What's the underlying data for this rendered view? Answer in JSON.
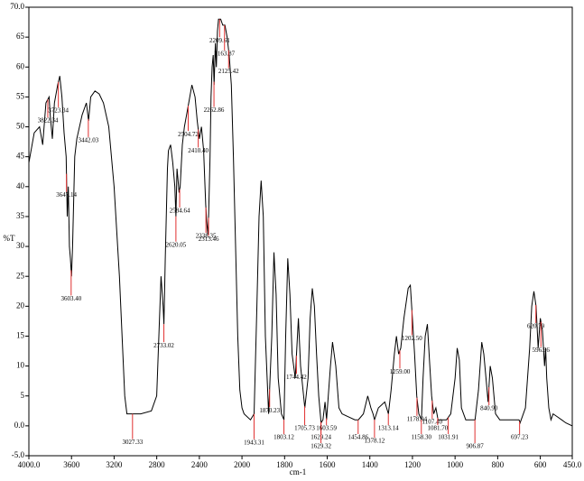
{
  "chart_data": {
    "type": "line",
    "xlabel": "cm-1",
    "ylabel": "%T",
    "xlim": [
      4000,
      450
    ],
    "ylim": [
      -5,
      70
    ],
    "xticks": [
      {
        "value": 4000,
        "label": "4000.0"
      },
      3600,
      3200,
      2800,
      2400,
      2000,
      1800,
      1600,
      1400,
      1200,
      1000,
      800,
      600,
      {
        "value": 450,
        "label": "450.0"
      }
    ],
    "yticks": [
      {
        "value": 70,
        "label": "70.0"
      },
      65,
      60,
      55,
      50,
      45,
      40,
      35,
      30,
      25,
      20,
      15,
      10,
      5,
      {
        "value": 0,
        "label": "0.0"
      },
      {
        "value": -5,
        "label": "-5.0"
      }
    ],
    "color": "#000000",
    "peak_color": "#e03030",
    "x": [
      4000,
      3950,
      3900,
      3870,
      3840,
      3810,
      3800,
      3780,
      3760,
      3730,
      3710,
      3690,
      3670,
      3650,
      3640,
      3630,
      3620,
      3610,
      3600,
      3590,
      3570,
      3550,
      3500,
      3460,
      3440,
      3420,
      3380,
      3340,
      3300,
      3250,
      3200,
      3150,
      3100,
      3080,
      3027,
      2950,
      2850,
      2800,
      2780,
      2760,
      2740,
      2733,
      2720,
      2700,
      2690,
      2670,
      2650,
      2630,
      2620,
      2610,
      2600,
      2590,
      2580,
      2560,
      2540,
      2520,
      2500,
      2470,
      2440,
      2420,
      2400,
      2380,
      2360,
      2340,
      2330,
      2320,
      2313,
      2300,
      2290,
      2280,
      2270,
      2262,
      2250,
      2240,
      2230,
      2220,
      2200,
      2180,
      2160,
      2140,
      2120,
      2100,
      2080,
      2060,
      2040,
      2020,
      2000,
      1990,
      1960,
      1943,
      1930,
      1920,
      1910,
      1900,
      1890,
      1875,
      1860,
      1850,
      1840,
      1830,
      1815,
      1803,
      1795,
      1785,
      1775,
      1765,
      1750,
      1744,
      1735,
      1725,
      1705,
      1690,
      1680,
      1670,
      1660,
      1650,
      1640,
      1629,
      1620,
      1610,
      1603,
      1595,
      1585,
      1575,
      1560,
      1545,
      1530,
      1500,
      1470,
      1454,
      1430,
      1410,
      1395,
      1385,
      1378,
      1360,
      1330,
      1313,
      1300,
      1285,
      1275,
      1265,
      1255,
      1240,
      1220,
      1210,
      1200,
      1190,
      1180,
      1170,
      1158,
      1150,
      1140,
      1130,
      1120,
      1110,
      1100,
      1090,
      1080,
      1060,
      1040,
      1020,
      1000,
      990,
      980,
      970,
      950,
      930,
      906,
      890,
      875,
      865,
      850,
      845,
      835,
      825,
      810,
      790,
      760,
      700,
      695,
      670,
      650,
      640,
      630,
      620,
      610,
      600,
      590,
      580,
      575,
      570,
      560,
      550,
      540,
      520,
      500,
      480,
      450
    ],
    "values": [
      44,
      49,
      50,
      47,
      54,
      55,
      52,
      48,
      54,
      57,
      58.5,
      55,
      49,
      45,
      35,
      40,
      30,
      28,
      25,
      30,
      45,
      48,
      52,
      54,
      51,
      55,
      56,
      55.5,
      54,
      50,
      40,
      25,
      5,
      2,
      2,
      2,
      2.5,
      5,
      15,
      25,
      20,
      17,
      28,
      43,
      46,
      47,
      44,
      40,
      35,
      43,
      41,
      39,
      40,
      47,
      50,
      52,
      54,
      57,
      55,
      51,
      48,
      50,
      46,
      37,
      34,
      32,
      35,
      45,
      55,
      60,
      62,
      57,
      64,
      60,
      66,
      68,
      68,
      67,
      67,
      65,
      62,
      57,
      45,
      30,
      15,
      6,
      3,
      2,
      1,
      2,
      20,
      35,
      41,
      35,
      15,
      2,
      15,
      29,
      22,
      8,
      2,
      1,
      15,
      28,
      22,
      12,
      8,
      12,
      18,
      10,
      3,
      8,
      18,
      23,
      20,
      12,
      5,
      0.5,
      1,
      4,
      1,
      5,
      10,
      14,
      10,
      3,
      2,
      1.5,
      1,
      1,
      2,
      5,
      3,
      2,
      1,
      3,
      4,
      2,
      6,
      12,
      15,
      12,
      13,
      18,
      23,
      23.5,
      18,
      12,
      5,
      2,
      1,
      8,
      15,
      17,
      11,
      5,
      2,
      3,
      1,
      1,
      1,
      2,
      8,
      13,
      11,
      3,
      1,
      1,
      1,
      6,
      14,
      12,
      6,
      4,
      10,
      8,
      2,
      1,
      1,
      1,
      0.5,
      3,
      13,
      20,
      22.5,
      20,
      13,
      18,
      16,
      10,
      13,
      8,
      3,
      1,
      2,
      1.5,
      1,
      0.5,
      0
    ],
    "peaks": [
      {
        "x": 3822.34,
        "label": "3822.34"
      },
      {
        "x": 3723.34,
        "label": "3723.34"
      },
      {
        "x": 3647.14,
        "label": "3647.14"
      },
      {
        "x": 3603.4,
        "label": "3603.40"
      },
      {
        "x": 3442.03,
        "label": "3442.03"
      },
      {
        "x": 3027.33,
        "label": "3027.33"
      },
      {
        "x": 2733.02,
        "label": "2733.02"
      },
      {
        "x": 2620.05,
        "label": "2620.05"
      },
      {
        "x": 2584.64,
        "label": "2584.64"
      },
      {
        "x": 2504.72,
        "label": "2504.72"
      },
      {
        "x": 2410.4,
        "label": "2410.40"
      },
      {
        "x": 2338.35,
        "label": "2338.35"
      },
      {
        "x": 2313.46,
        "label": "2313.46"
      },
      {
        "x": 2262.86,
        "label": "2262.86"
      },
      {
        "x": 2209.61,
        "label": "2209.61"
      },
      {
        "x": 2163.87,
        "label": "2163.87"
      },
      {
        "x": 2125.42,
        "label": "2125.42"
      },
      {
        "x": 1943.31,
        "label": "1943.31"
      },
      {
        "x": 1870.23,
        "label": "1870.23"
      },
      {
        "x": 1803.12,
        "label": "1803.12"
      },
      {
        "x": 1744.42,
        "label": "1744.42"
      },
      {
        "x": 1705.73,
        "label": "1705.73"
      },
      {
        "x": 1629.24,
        "label": "1629.24"
      },
      {
        "x": 1629.32,
        "label": "1629.32"
      },
      {
        "x": 1603.59,
        "label": "1603.59"
      },
      {
        "x": 1454.86,
        "label": "1454.86"
      },
      {
        "x": 1378.12,
        "label": "1378.12"
      },
      {
        "x": 1313.14,
        "label": "1313.14"
      },
      {
        "x": 1259,
        "label": "1259.00"
      },
      {
        "x": 1202.5,
        "label": "1202.50"
      },
      {
        "x": 1178.94,
        "label": "1178.94"
      },
      {
        "x": 1158.3,
        "label": "1158.30"
      },
      {
        "x": 1107.4,
        "label": "1107.40"
      },
      {
        "x": 1081.7,
        "label": "1081.70"
      },
      {
        "x": 1031.91,
        "label": "1031.91"
      },
      {
        "x": 906.87,
        "label": "906.87"
      },
      {
        "x": 840.9,
        "label": "840.90"
      },
      {
        "x": 697.23,
        "label": "697.23"
      },
      {
        "x": 620.79,
        "label": "620.79"
      },
      {
        "x": 596.96,
        "label": "596.96"
      }
    ]
  }
}
